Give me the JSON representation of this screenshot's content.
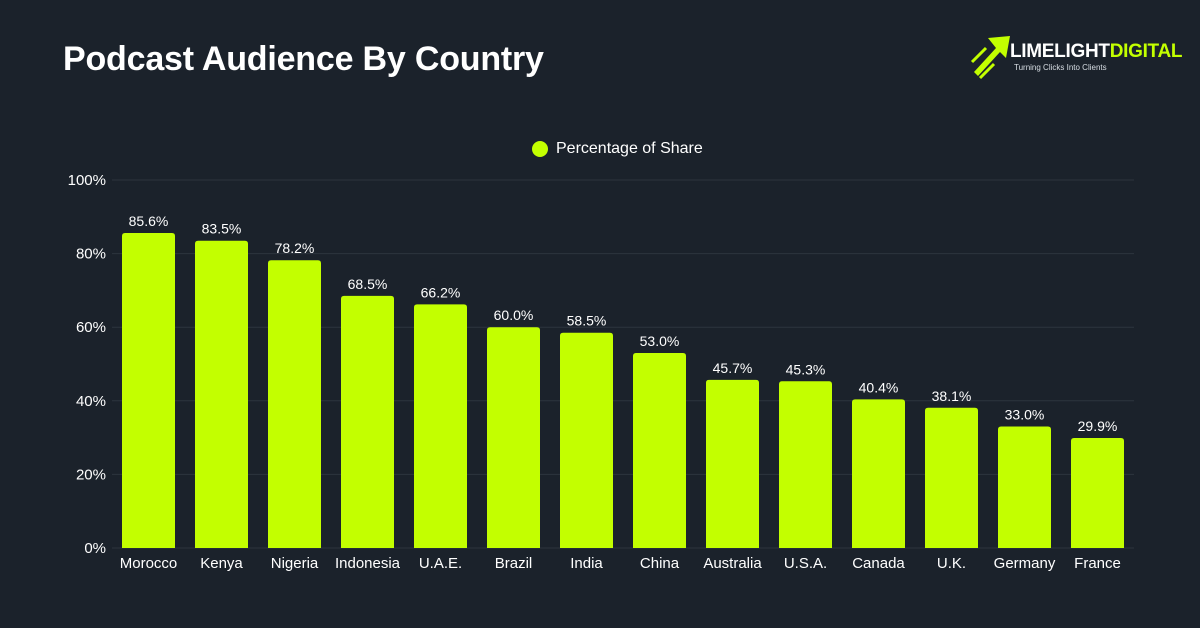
{
  "header": {
    "title": "Podcast Audience By Country"
  },
  "logo": {
    "brand_white": "LIMELIGHT",
    "brand_green": "DIGITAL",
    "tagline": "Turning Clicks Into Clients",
    "arrow_icon": "arrow-rocket-icon"
  },
  "colors": {
    "background": "#1b222b",
    "bar": "#c3ff00",
    "grid": "#2c343e",
    "text": "#ffffff"
  },
  "chart_data": {
    "type": "bar",
    "title": "Podcast Audience By Country",
    "xlabel": "",
    "ylabel": "",
    "ylim": [
      0,
      100
    ],
    "y_ticks": [
      "0%",
      "20%",
      "40%",
      "60%",
      "80%",
      "100%"
    ],
    "y_tick_values": [
      0,
      20,
      40,
      60,
      80,
      100
    ],
    "grid": true,
    "legend_position": "top-center",
    "categories": [
      "Morocco",
      "Kenya",
      "Nigeria",
      "Indonesia",
      "U.A.E.",
      "Brazil",
      "India",
      "China",
      "Australia",
      "U.S.A.",
      "Canada",
      "U.K.",
      "Germany",
      "France"
    ],
    "series": [
      {
        "name": "Percentage of Share",
        "values": [
          85.6,
          83.5,
          78.2,
          68.5,
          66.2,
          60.0,
          58.5,
          53.0,
          45.7,
          45.3,
          40.4,
          38.1,
          33.0,
          29.9
        ],
        "labels": [
          "85.6%",
          "83.5%",
          "78.2%",
          "68.5%",
          "66.2%",
          "60.0%",
          "58.5%",
          "53.0%",
          "45.7%",
          "45.3%",
          "40.4%",
          "38.1%",
          "33.0%",
          "29.9%"
        ]
      }
    ]
  }
}
